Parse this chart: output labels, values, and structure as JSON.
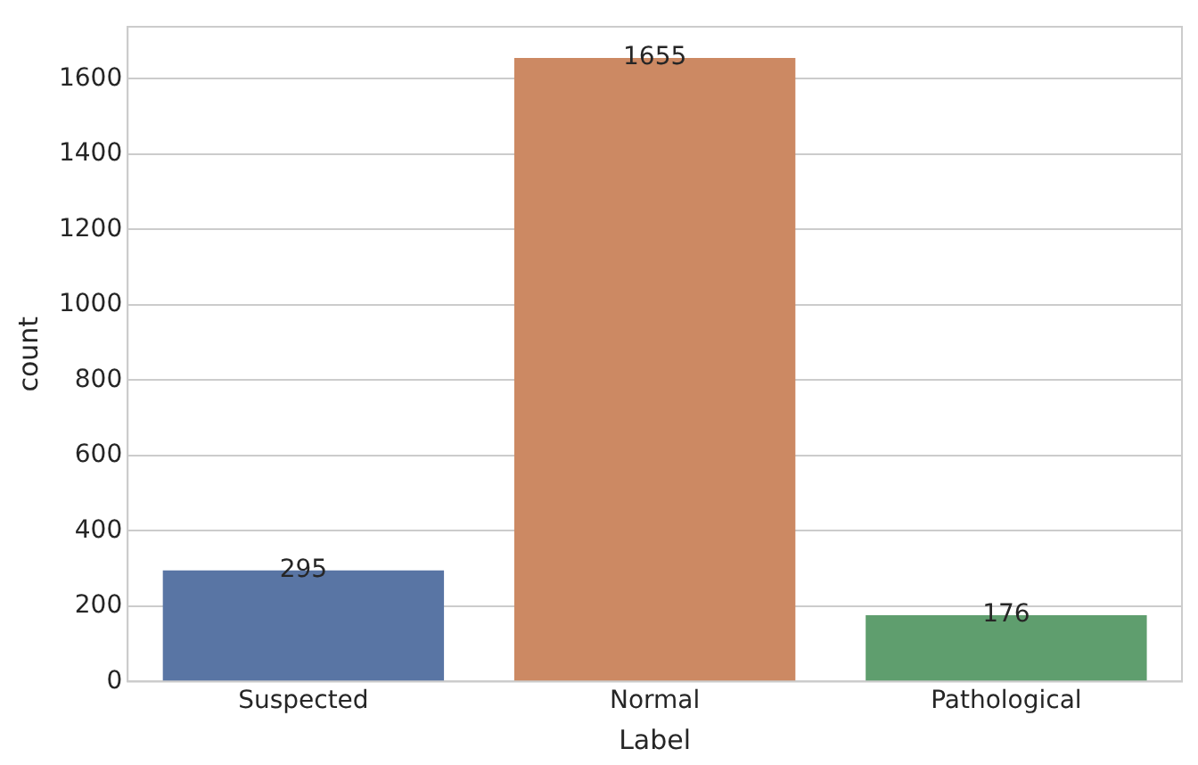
{
  "chart_data": {
    "type": "bar",
    "xlabel": "Label",
    "ylabel": "count",
    "categories": [
      "Suspected",
      "Normal",
      "Pathological"
    ],
    "values": [
      295,
      1655,
      176
    ],
    "colors": [
      "#5975a4",
      "#cc8963",
      "#5f9e6e"
    ],
    "ylim": [
      0,
      1738
    ],
    "yticks": [
      0,
      200,
      400,
      600,
      800,
      1000,
      1200,
      1400,
      1600
    ],
    "grid": "y",
    "data_labels": true,
    "legend": false
  }
}
